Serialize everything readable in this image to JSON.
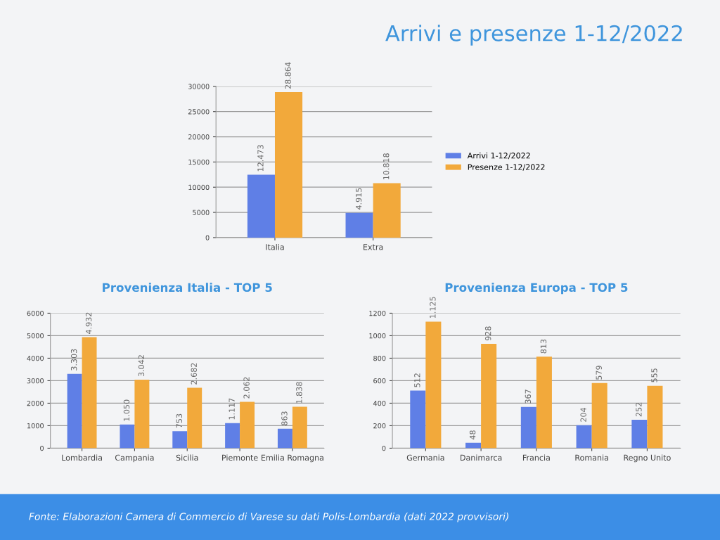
{
  "chart_data": [
    {
      "type": "bar",
      "title": "Arrivi e presenze 1-12/2022",
      "categories": [
        "Italia",
        "Extra"
      ],
      "series": [
        {
          "name": "Arrivi 1-12/2022",
          "color": "#5f7fe6",
          "values": [
            12473,
            4915
          ],
          "value_labels": [
            "12.473",
            "4.915"
          ]
        },
        {
          "name": "Presenze 1-12/2022",
          "color": "#f2a93b",
          "values": [
            28864,
            10818
          ],
          "value_labels": [
            "28.864",
            "10.818"
          ]
        }
      ],
      "ylim": [
        0,
        30000
      ],
      "yticks": [
        0,
        5000,
        10000,
        15000,
        20000,
        25000,
        30000
      ],
      "grid": "y",
      "legend": "right",
      "annotations": [
        "Fonte: Elaborazioni Camera di Commercio di Varese su dati Polis-Lombardia (dati 2022 provvisori)"
      ]
    },
    {
      "type": "bar",
      "title": "Provenienza Italia - TOP 5",
      "categories": [
        "Lombardia",
        "Campania",
        "Sicilia",
        "Piemonte",
        "Emilia Romagna"
      ],
      "series": [
        {
          "color": "#5f7fe6",
          "values": [
            3303,
            1050,
            753,
            1117,
            863
          ],
          "value_labels": [
            "3.303",
            "1.050",
            "753",
            "1.117",
            "863"
          ]
        },
        {
          "color": "#f2a93b",
          "values": [
            4932,
            3042,
            2682,
            2062,
            1838
          ],
          "value_labels": [
            "4.932",
            "3.042",
            "2.682",
            "2.062",
            "1.838"
          ]
        }
      ],
      "ylim": [
        0,
        6000
      ],
      "yticks": [
        0,
        1000,
        2000,
        3000,
        4000,
        5000,
        6000
      ],
      "grid": "y"
    },
    {
      "type": "bar",
      "title": "Provenienza Europa - TOP 5",
      "categories": [
        "Germania",
        "Danimarca",
        "Francia",
        "Romania",
        "Regno Unito"
      ],
      "series": [
        {
          "color": "#5f7fe6",
          "values": [
            512,
            48,
            367,
            204,
            252
          ],
          "value_labels": [
            "512",
            "48",
            "367",
            "204",
            "252"
          ]
        },
        {
          "color": "#f2a93b",
          "values": [
            1125,
            928,
            813,
            579,
            555
          ],
          "value_labels": [
            "1.125",
            "928",
            "813",
            "579",
            "555"
          ]
        }
      ],
      "ylim": [
        0,
        1200
      ],
      "yticks": [
        0,
        200,
        400,
        600,
        800,
        1000,
        1200
      ],
      "grid": "y"
    }
  ]
}
